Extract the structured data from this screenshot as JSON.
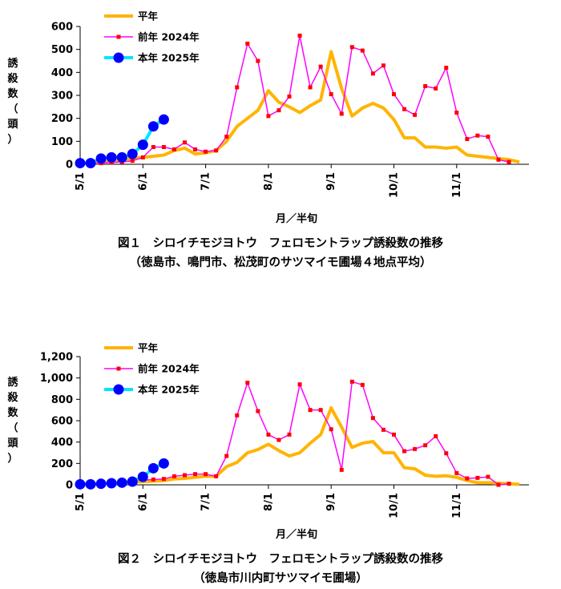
{
  "colors": {
    "normal_year": "#FFB400",
    "prev_year": "#FF00FF",
    "prev_marker": "#FF0000",
    "this_year_line": "#00E5FF",
    "this_year_marker": "#0000FF"
  },
  "chart_data": [
    {
      "type": "line",
      "title": "図１　シロイチモジヨトウ　フェロモントラップ誘殺数の推移",
      "subtitle": "（徳島市、鳴門市、松茂町のサツマイモ圃場４地点平均）",
      "xlabel": "月／半旬",
      "ylabel": "誘殺数（頭）",
      "ylim": [
        0,
        600
      ],
      "yticks": [
        "0",
        "100",
        "200",
        "300",
        "400",
        "500",
        "600"
      ],
      "x_ticks": [
        "5/1",
        "6/1",
        "7/1",
        "8/1",
        "9/1",
        "10/1",
        "11/1"
      ],
      "grid": false,
      "legend_position": "top-left",
      "series": [
        {
          "name": "平年",
          "values": [
            5,
            5,
            8,
            15,
            20,
            25,
            30,
            35,
            40,
            60,
            70,
            45,
            50,
            60,
            100,
            165,
            200,
            235,
            320,
            270,
            250,
            225,
            255,
            280,
            490,
            330,
            210,
            245,
            265,
            245,
            195,
            115,
            115,
            75,
            75,
            70,
            75,
            40,
            35,
            30,
            25,
            20,
            10
          ]
        },
        {
          "name": "前年 2024年",
          "values": [
            0,
            2,
            5,
            8,
            10,
            15,
            30,
            75,
            75,
            65,
            95,
            65,
            55,
            60,
            120,
            335,
            525,
            450,
            210,
            235,
            295,
            560,
            335,
            425,
            305,
            220,
            510,
            495,
            395,
            430,
            305,
            240,
            215,
            340,
            330,
            420,
            225,
            110,
            125,
            120,
            20,
            10,
            null
          ]
        },
        {
          "name": "本年 2025年",
          "values": [
            5,
            5,
            25,
            30,
            30,
            45,
            85,
            165,
            195
          ]
        }
      ]
    },
    {
      "type": "line",
      "title": "図２　シロイチモジヨトウ　フェロモントラップ誘殺数の推移",
      "subtitle": "（徳島市川内町サツマイモ圃場）",
      "xlabel": "月／半旬",
      "ylabel": "誘殺数（頭）",
      "ylim": [
        0,
        1200
      ],
      "yticks": [
        "0",
        "200",
        "400",
        "600",
        "800",
        "1,000",
        "1,200"
      ],
      "x_ticks": [
        "5/1",
        "6/1",
        "7/1",
        "8/1",
        "9/1",
        "10/1",
        "11/1"
      ],
      "grid": false,
      "legend_position": "top-left",
      "series": [
        {
          "name": "平年",
          "values": [
            5,
            5,
            8,
            15,
            20,
            25,
            30,
            35,
            40,
            55,
            60,
            70,
            80,
            80,
            170,
            210,
            300,
            330,
            380,
            320,
            270,
            300,
            390,
            470,
            720,
            540,
            350,
            390,
            405,
            300,
            300,
            160,
            150,
            90,
            80,
            85,
            70,
            40,
            20,
            20,
            15,
            10,
            5
          ]
        },
        {
          "name": "前年 2024年",
          "values": [
            0,
            2,
            10,
            20,
            30,
            40,
            45,
            50,
            55,
            80,
            90,
            100,
            100,
            80,
            270,
            650,
            955,
            690,
            470,
            420,
            470,
            940,
            700,
            700,
            520,
            140,
            965,
            935,
            625,
            515,
            470,
            315,
            335,
            370,
            455,
            295,
            110,
            60,
            65,
            75,
            0,
            10,
            null
          ]
        },
        {
          "name": "本年 2025年",
          "values": [
            5,
            5,
            10,
            15,
            20,
            30,
            75,
            155,
            200
          ]
        }
      ]
    }
  ]
}
